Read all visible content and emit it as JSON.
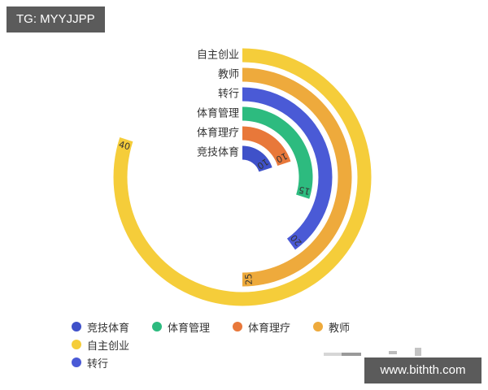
{
  "badges": {
    "top_left": "TG: MYYJJPP",
    "bottom_right": "www.bithth.com"
  },
  "colors": {
    "竞技体育": "#3f51c9",
    "体育理疗": "#e8783a",
    "体育管理": "#2dbb7f",
    "转行": "#4a5ad6",
    "教师": "#eeaa3c",
    "自主创业": "#f5cd3a"
  },
  "chart_data": {
    "type": "radial-bar",
    "title": "",
    "max_value": 50,
    "start_angle_deg": 0,
    "direction": "clockwise",
    "center": [
      298,
      218
    ],
    "categories_inner_to_outer": [
      "竞技体育",
      "体育理疗",
      "体育管理",
      "转行",
      "教师",
      "自主创业"
    ],
    "values": [
      10,
      10,
      15,
      20,
      25,
      40
    ],
    "series": [
      {
        "name": "竞技体育",
        "value": 10,
        "color": "#3f51c9"
      },
      {
        "name": "体育理疗",
        "value": 10,
        "color": "#e8783a"
      },
      {
        "name": "体育管理",
        "value": 15,
        "color": "#2dbb7f"
      },
      {
        "name": "转行",
        "value": 20,
        "color": "#4a5ad6"
      },
      {
        "name": "教师",
        "value": 25,
        "color": "#eeaa3c"
      },
      {
        "name": "自主创业",
        "value": 40,
        "color": "#f5cd3a"
      }
    ],
    "legend": [
      "竞技体育",
      "体育管理",
      "体育理疗",
      "教师",
      "自主创业",
      "转行"
    ],
    "legend_position": "bottom",
    "grid": false
  }
}
